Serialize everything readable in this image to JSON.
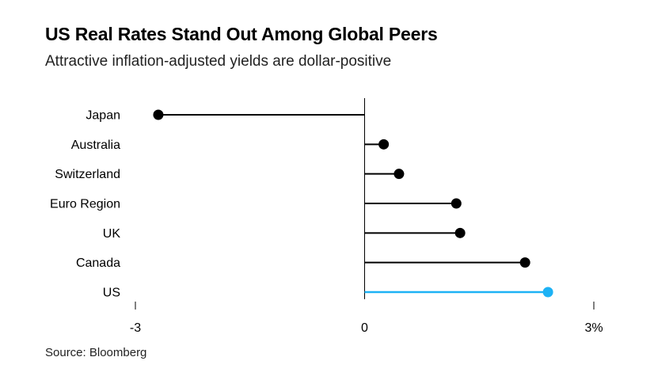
{
  "title": "US Real Rates Stand Out Among Global Peers",
  "subtitle": "Attractive inflation-adjusted yields are dollar-positive",
  "source": "Source: Bloomberg",
  "chart_data": {
    "type": "lollipop",
    "orientation": "horizontal",
    "categories": [
      "Japan",
      "Australia",
      "Switzerland",
      "Euro Region",
      "UK",
      "Canada",
      "US"
    ],
    "values": [
      -2.7,
      0.25,
      0.45,
      1.2,
      1.25,
      2.1,
      2.4
    ],
    "highlight": "US",
    "colors": {
      "default": "#000000",
      "highlight": "#1DB2F5",
      "axis": "#000000"
    },
    "xlim": [
      -3,
      3
    ],
    "x_ticks": [
      -3,
      0,
      3
    ],
    "x_tick_labels": [
      "-3",
      "0",
      "3%"
    ],
    "grid": false,
    "legend": "none"
  }
}
